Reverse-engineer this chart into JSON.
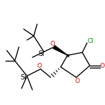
{
  "bg_color": "#ffffff",
  "figsize": [
    1.52,
    1.52
  ],
  "dpi": 100,
  "atom_colors": {
    "O": "#cc0000",
    "Cl": "#008800",
    "Si": "#000000",
    "C": "#000000"
  },
  "lw": 1.0,
  "fs": 6.5
}
